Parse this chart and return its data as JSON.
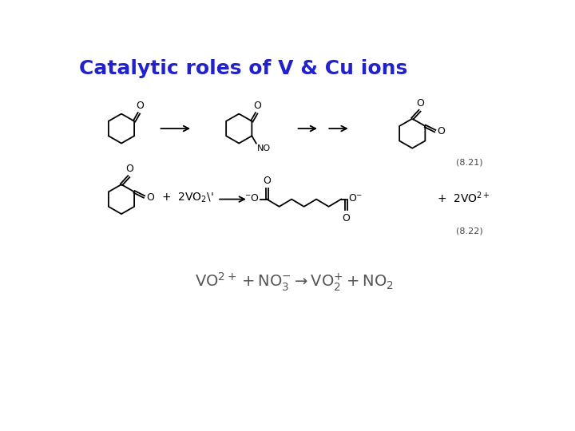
{
  "title": "Catalytic roles of V & Cu ions",
  "title_color": "#2222CC",
  "title_fontsize": 18,
  "bg_color": "#ffffff",
  "ref_821": "(8.21)",
  "ref_822": "(8.22)",
  "lw": 1.3,
  "r": 24
}
